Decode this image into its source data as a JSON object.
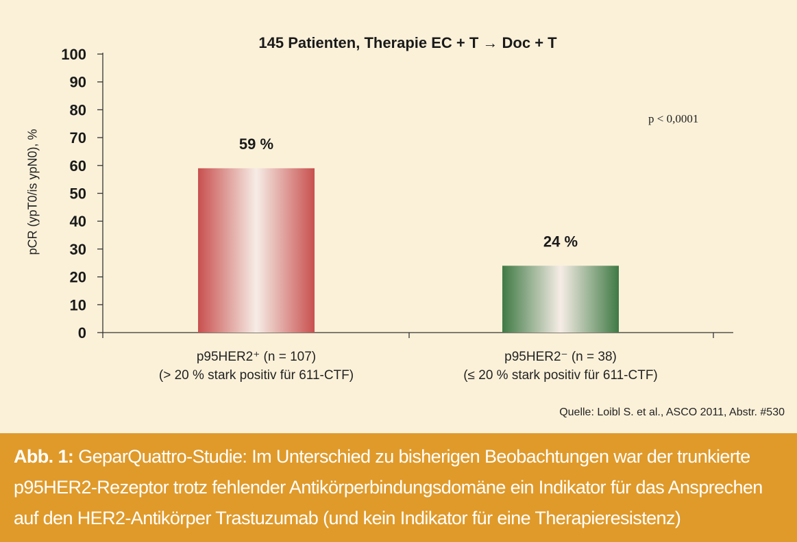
{
  "chart_data": {
    "type": "bar",
    "title": "145 Patienten, Therapie EC + T → Doc + T",
    "ylabel": "pCR (ypT0/is ypN0), %",
    "ylim": [
      0,
      100
    ],
    "yticks": [
      "0",
      "10",
      "20",
      "30",
      "40",
      "50",
      "60",
      "70",
      "80",
      "90",
      "100"
    ],
    "categories": [
      {
        "line1": "p95HER2⁺ (n = 107)",
        "line2": "(> 20 % stark positiv für 611-CTF)"
      },
      {
        "line1": "p95HER2⁻ (n = 38)",
        "line2": "(≤ 20 % stark positiv für 611-CTF)"
      }
    ],
    "values": [
      59,
      24
    ],
    "data_labels": [
      "59 %",
      "24 %"
    ],
    "bar_colors": [
      "#c8504f",
      "#3f7a45"
    ],
    "annotation": "p < 0,0001",
    "grid": false,
    "legend": "none"
  },
  "source": "Quelle: Loibl S. et al., ASCO 2011, Abstr. #530",
  "caption": {
    "label": "Abb. 1:",
    "text": " GeparQuattro-Studie: Im Unterschied zu bisherigen Beobachtungen war der trunkierte p95HER2-Rezeptor trotz fehlender Antikörperbindungsdomäne ein Indikator für das Ansprechen auf den HER2-Antikörper Trastuzumab (und kein Indikator für eine Therapieresistenz)"
  },
  "colors": {
    "background": "#fbf1d9",
    "caption_background": "#e09a2a"
  }
}
